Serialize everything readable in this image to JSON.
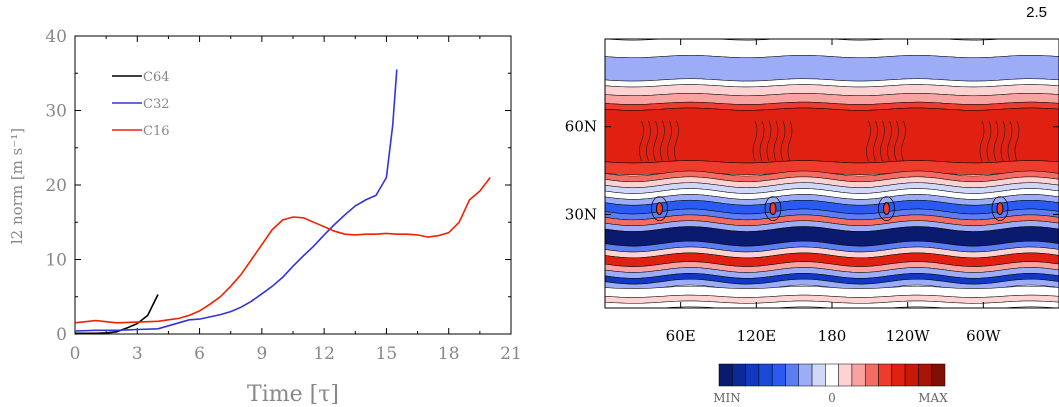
{
  "panel_tag": "2.5",
  "chart_data": [
    {
      "type": "line",
      "title": "",
      "xlabel": "Time [τ]",
      "ylabel": "l2 norm [m s⁻¹]",
      "xlim": [
        0,
        21
      ],
      "ylim": [
        0,
        40
      ],
      "xticks": [
        "0",
        "3",
        "6",
        "9",
        "12",
        "15",
        "18",
        "21"
      ],
      "yticks": [
        "0",
        "10",
        "20",
        "30",
        "40"
      ],
      "legend_position": "top-left",
      "series": [
        {
          "name": "C64",
          "color": "#000000",
          "x": [
            0,
            1,
            1.5,
            2,
            2.5,
            3,
            3.5,
            4
          ],
          "y": [
            0.1,
            0.1,
            0.15,
            0.3,
            0.8,
            1.4,
            2.5,
            5.3
          ]
        },
        {
          "name": "C32",
          "color": "#3333dd",
          "x": [
            0,
            1,
            2,
            3,
            4,
            4.5,
            5,
            5.5,
            6,
            6.5,
            7,
            7.5,
            8,
            8.5,
            9,
            9.5,
            10,
            10.5,
            11,
            11.5,
            12,
            12.5,
            13,
            13.5,
            14,
            14.5,
            15,
            15.3,
            15.5
          ],
          "y": [
            0.4,
            0.5,
            0.5,
            0.6,
            0.7,
            1.1,
            1.5,
            1.9,
            2.0,
            2.3,
            2.6,
            3.0,
            3.6,
            4.4,
            5.4,
            6.4,
            7.6,
            9.1,
            10.5,
            11.8,
            13.3,
            14.7,
            16.0,
            17.2,
            18.0,
            18.6,
            21.0,
            28.0,
            35.5
          ]
        },
        {
          "name": "C16",
          "color": "#ee2200",
          "x": [
            0,
            1,
            2,
            3,
            4,
            4.5,
            5,
            5.5,
            6,
            6.5,
            7,
            7.5,
            8,
            8.5,
            9,
            9.5,
            10,
            10.5,
            11,
            11.5,
            12,
            12.5,
            13,
            13.5,
            14,
            14.5,
            15,
            15.5,
            16,
            16.5,
            17,
            17.5,
            18,
            18.5,
            19,
            19.5,
            20
          ],
          "y": [
            1.5,
            1.8,
            1.5,
            1.6,
            1.7,
            1.9,
            2.1,
            2.5,
            3.1,
            4.0,
            5.0,
            6.4,
            8.0,
            10.0,
            12.0,
            14.0,
            15.3,
            15.7,
            15.6,
            15.0,
            14.4,
            13.8,
            13.4,
            13.3,
            13.4,
            13.4,
            13.5,
            13.4,
            13.4,
            13.3,
            13.0,
            13.2,
            13.6,
            15.0,
            18.0,
            19.2,
            21.0
          ]
        }
      ]
    },
    {
      "type": "heatmap",
      "title": "",
      "x_tick_labels": [
        "60E",
        "120E",
        "180",
        "120W",
        "60W"
      ],
      "y_tick_labels": [
        "30N",
        "60N"
      ],
      "colorbar_labels": [
        "MIN",
        "0",
        "MAX"
      ],
      "colorbar_colors": [
        "#0a1a6e",
        "#0c2a96",
        "#1038c0",
        "#1a4ad8",
        "#2a5af0",
        "#5c7ef2",
        "#9cacf6",
        "#d0d8fa",
        "#ffffff",
        "#fcd2d2",
        "#f8a2a2",
        "#f36c64",
        "#ee3c2c",
        "#e02010",
        "#c81808",
        "#a81408",
        "#801004"
      ],
      "bands": [
        {
          "lat_from": 90,
          "lat_to": 84,
          "level": 0
        },
        {
          "lat_from": 84,
          "lat_to": 76,
          "level": -2
        },
        {
          "lat_from": 76,
          "lat_to": 74,
          "level": 0
        },
        {
          "lat_from": 74,
          "lat_to": 71,
          "level": 1
        },
        {
          "lat_from": 71,
          "lat_to": 68,
          "level": 2
        },
        {
          "lat_from": 68,
          "lat_to": 66,
          "level": 4
        },
        {
          "lat_from": 66,
          "lat_to": 48,
          "level": 5
        },
        {
          "lat_from": 48,
          "lat_to": 44,
          "level": 4
        },
        {
          "lat_from": 44,
          "lat_to": 42,
          "level": 3
        },
        {
          "lat_from": 42,
          "lat_to": 40,
          "level": 1
        },
        {
          "lat_from": 40,
          "lat_to": 38,
          "level": -1
        },
        {
          "lat_from": 38,
          "lat_to": 36,
          "level": 0
        },
        {
          "lat_from": 36,
          "lat_to": 34,
          "level": -2
        },
        {
          "lat_from": 34,
          "lat_to": 31,
          "level": -4
        },
        {
          "lat_from": 31,
          "lat_to": 29,
          "level": -3
        },
        {
          "lat_from": 29,
          "lat_to": 27,
          "level": 3
        },
        {
          "lat_from": 27,
          "lat_to": 25,
          "level": -2
        },
        {
          "lat_from": 25,
          "lat_to": 20,
          "level": -8
        },
        {
          "lat_from": 20,
          "lat_to": 18,
          "level": -3
        },
        {
          "lat_from": 18,
          "lat_to": 16,
          "level": 1
        },
        {
          "lat_from": 16,
          "lat_to": 13,
          "level": 5
        },
        {
          "lat_from": 13,
          "lat_to": 11,
          "level": 2
        },
        {
          "lat_from": 11,
          "lat_to": 9,
          "level": -2
        },
        {
          "lat_from": 9,
          "lat_to": 7,
          "level": -6
        },
        {
          "lat_from": 7,
          "lat_to": 5,
          "level": -2
        },
        {
          "lat_from": 5,
          "lat_to": 2,
          "level": 0
        },
        {
          "lat_from": 2,
          "lat_to": 0,
          "level": 1
        },
        {
          "lat_from": 0,
          "lat_to": -2,
          "level": 0
        }
      ]
    }
  ]
}
